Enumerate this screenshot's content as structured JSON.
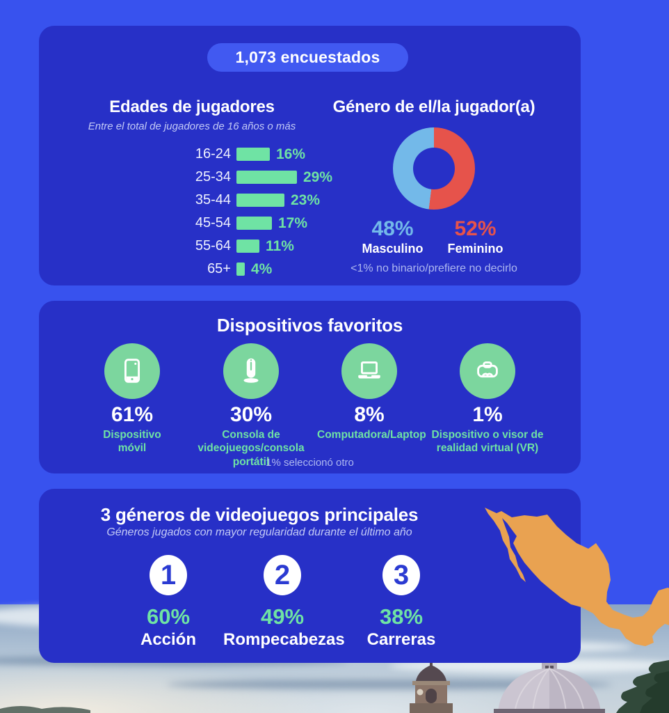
{
  "badge": {
    "label": "1,073 encuestados"
  },
  "colors": {
    "bg": "#3852EE",
    "card": "#2730C7",
    "pill": "#4159F1",
    "green": "#6FE3A4",
    "green-circle": "#7CD69E",
    "male": "#73B9E9",
    "female": "#E6534B",
    "orange": "#E9A251",
    "muted": "#AEB8F0",
    "muted-light": "#C3CAF6",
    "numblue": "#2B3BD2"
  },
  "chart_data": [
    {
      "type": "bar",
      "title": "Edades de jugadores",
      "subtitle": "Entre el total de jugadores de 16 años o más",
      "categories": [
        "16-24",
        "25-34",
        "35-44",
        "45-54",
        "55-64",
        "65+"
      ],
      "values": [
        16,
        29,
        23,
        17,
        11,
        4
      ],
      "labels_pct": [
        "16%",
        "29%",
        "23%",
        "17%",
        "11%",
        "4%"
      ],
      "orientation": "horizontal",
      "bar_color": "#6FE3A4",
      "xlim": [
        0,
        30
      ],
      "grid": false
    },
    {
      "type": "pie",
      "variant": "donut",
      "title": "Género de el/la jugador(a)",
      "labels": [
        "Masculino",
        "Feminino"
      ],
      "values": [
        48,
        52
      ],
      "labels_pct": [
        "48%",
        "52%"
      ],
      "colors": [
        "#73B9E9",
        "#E6534B"
      ],
      "start": "top, female slice clockwise first",
      "footnote": "<1% no binario/prefiere no decirlo"
    },
    {
      "type": "bar",
      "variant": "icon-pictogram",
      "title": "Dispositivos favoritos",
      "categories": [
        "Dispositivo móvil",
        "Consola de videojuegos/consola portátil",
        "Computadora/Laptop",
        "Dispositivo o visor de realidad virtual (VR)"
      ],
      "values": [
        61,
        30,
        8,
        1
      ],
      "labels_pct": [
        "61%",
        "30%",
        "8%",
        "1%"
      ],
      "icons": [
        "smartphone-icon",
        "game-console-icon",
        "laptop-icon",
        "vr-headset-icon"
      ],
      "footnote": "1% seleccionó otro"
    },
    {
      "type": "bar",
      "variant": "ranked-list",
      "title": "3 géneros de videojuegos principales",
      "subtitle": "Géneros jugados con mayor regularidad durante el último año",
      "ranks": [
        "1",
        "2",
        "3"
      ],
      "categories": [
        "Acción",
        "Rompecabezas",
        "Carreras"
      ],
      "values": [
        60,
        49,
        38
      ],
      "labels_pct": [
        "60%",
        "49%",
        "38%"
      ]
    }
  ]
}
